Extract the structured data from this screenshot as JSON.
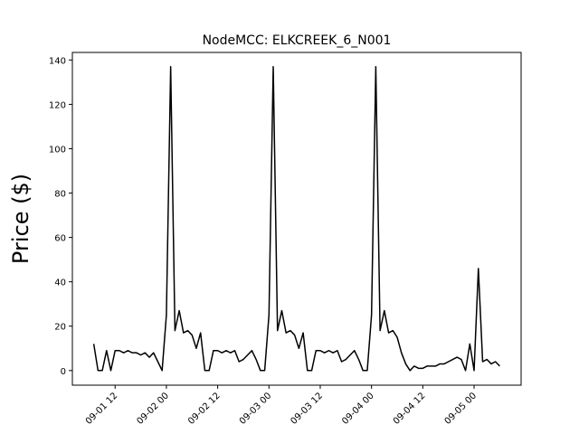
{
  "chart_data": {
    "type": "line",
    "title": "NodeMCC: ELKCREEK_6_N001",
    "y_label": "Price ($)",
    "x": [
      "09-01 07",
      "09-01 08",
      "09-01 09",
      "09-01 10",
      "09-01 11",
      "09-01 12",
      "09-01 13",
      "09-01 14",
      "09-01 15",
      "09-01 16",
      "09-01 17",
      "09-01 18",
      "09-01 19",
      "09-01 20",
      "09-01 21",
      "09-01 22",
      "09-01 23",
      "09-02 00",
      "09-02 01",
      "09-02 02",
      "09-02 03",
      "09-02 04",
      "09-02 05",
      "09-02 06",
      "09-02 07",
      "09-02 08",
      "09-02 09",
      "09-02 10",
      "09-02 11",
      "09-02 12",
      "09-02 13",
      "09-02 14",
      "09-02 15",
      "09-02 16",
      "09-02 17",
      "09-02 18",
      "09-02 19",
      "09-02 20",
      "09-02 21",
      "09-02 22",
      "09-02 23",
      "09-03 00",
      "09-03 01",
      "09-03 02",
      "09-03 03",
      "09-03 04",
      "09-03 05",
      "09-03 06",
      "09-03 07",
      "09-03 08",
      "09-03 09",
      "09-03 10",
      "09-03 11",
      "09-03 12",
      "09-03 13",
      "09-03 14",
      "09-03 15",
      "09-03 16",
      "09-03 17",
      "09-03 18",
      "09-03 19",
      "09-03 20",
      "09-03 21",
      "09-03 22",
      "09-03 23",
      "09-04 00",
      "09-04 01",
      "09-04 02",
      "09-04 03",
      "09-04 04",
      "09-04 05",
      "09-04 06",
      "09-04 07",
      "09-04 08",
      "09-04 09",
      "09-04 10",
      "09-04 11",
      "09-04 12",
      "09-04 13",
      "09-04 14",
      "09-04 15",
      "09-04 16",
      "09-04 17",
      "09-04 18",
      "09-04 19",
      "09-04 20",
      "09-04 21",
      "09-04 22",
      "09-04 23",
      "09-05 00",
      "09-05 01",
      "09-05 02",
      "09-05 03",
      "09-05 04",
      "09-05 05",
      "09-05 06"
    ],
    "series": [
      {
        "color": "#000000",
        "values": [
          12,
          0,
          0,
          9,
          0,
          9,
          9,
          8,
          9,
          8,
          8,
          7,
          8,
          6,
          8,
          4,
          0,
          25,
          137,
          18,
          27,
          17,
          18,
          16,
          10,
          17,
          0,
          0,
          9,
          9,
          8,
          9,
          8,
          9,
          4,
          5,
          7,
          9,
          5,
          0,
          0,
          25,
          137,
          18,
          27,
          17,
          18,
          16,
          10,
          17,
          0,
          0,
          9,
          9,
          8,
          9,
          8,
          9,
          4,
          5,
          7,
          9,
          5,
          0,
          0,
          25,
          137,
          18,
          27,
          17,
          18,
          15,
          8,
          3,
          0,
          2,
          1,
          1,
          2,
          2,
          2,
          3,
          3,
          4,
          5,
          6,
          5,
          0,
          12,
          0,
          46,
          4,
          5,
          3,
          4,
          2
        ]
      }
    ],
    "xlim": [
      "09-01 02",
      "09-05 11"
    ],
    "xticks": [
      "09-01 12",
      "09-02 00",
      "09-02 12",
      "09-03 00",
      "09-03 12",
      "09-04 00",
      "09-04 12",
      "09-05 00"
    ],
    "ylim": [
      -6.6,
      143.4
    ],
    "yticks": [
      0,
      20,
      40,
      60,
      80,
      100,
      120,
      140
    ]
  }
}
